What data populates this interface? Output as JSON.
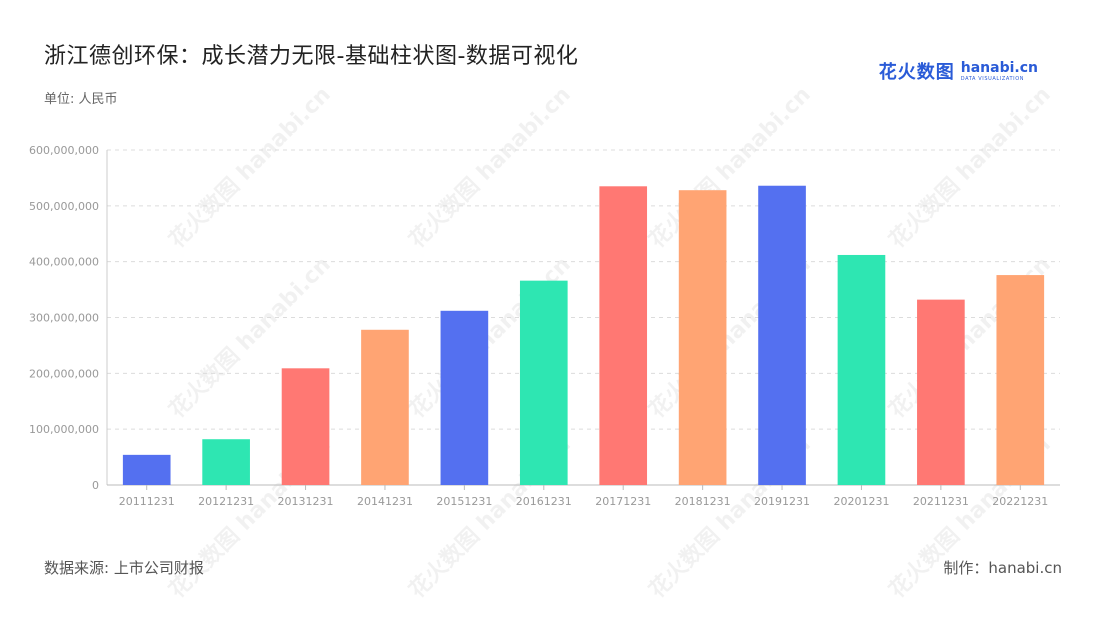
{
  "header": {
    "title": "浙江德创环保：成长潜力无限-基础柱状图-数据可视化",
    "unit": "单位: 人民币"
  },
  "logo": {
    "cn": "花火数图",
    "en": "hanabi.cn",
    "sub": "DATA VISUALIZATION"
  },
  "footer": {
    "source": "数据来源: 上市公司财报",
    "credit": "制作：hanabi.cn"
  },
  "chart_data": {
    "type": "bar",
    "categories": [
      "20111231",
      "20121231",
      "20131231",
      "20141231",
      "20151231",
      "20161231",
      "20171231",
      "20181231",
      "20191231",
      "20201231",
      "20211231",
      "20221231"
    ],
    "values": [
      54000000,
      82000000,
      209000000,
      278000000,
      312000000,
      366000000,
      535000000,
      528000000,
      536000000,
      412000000,
      332000000,
      376000000
    ],
    "ylim": [
      0,
      600000000
    ],
    "yticks": [
      0,
      100000000,
      200000000,
      300000000,
      400000000,
      500000000,
      600000000
    ],
    "ytick_labels": [
      "0",
      "100,000,000",
      "200,000,000",
      "300,000,000",
      "400,000,000",
      "500,000,000",
      "600,000,000"
    ],
    "colors": [
      "#5470f0",
      "#2ee6b2",
      "#ff7873",
      "#ffa473"
    ],
    "grid": true
  }
}
